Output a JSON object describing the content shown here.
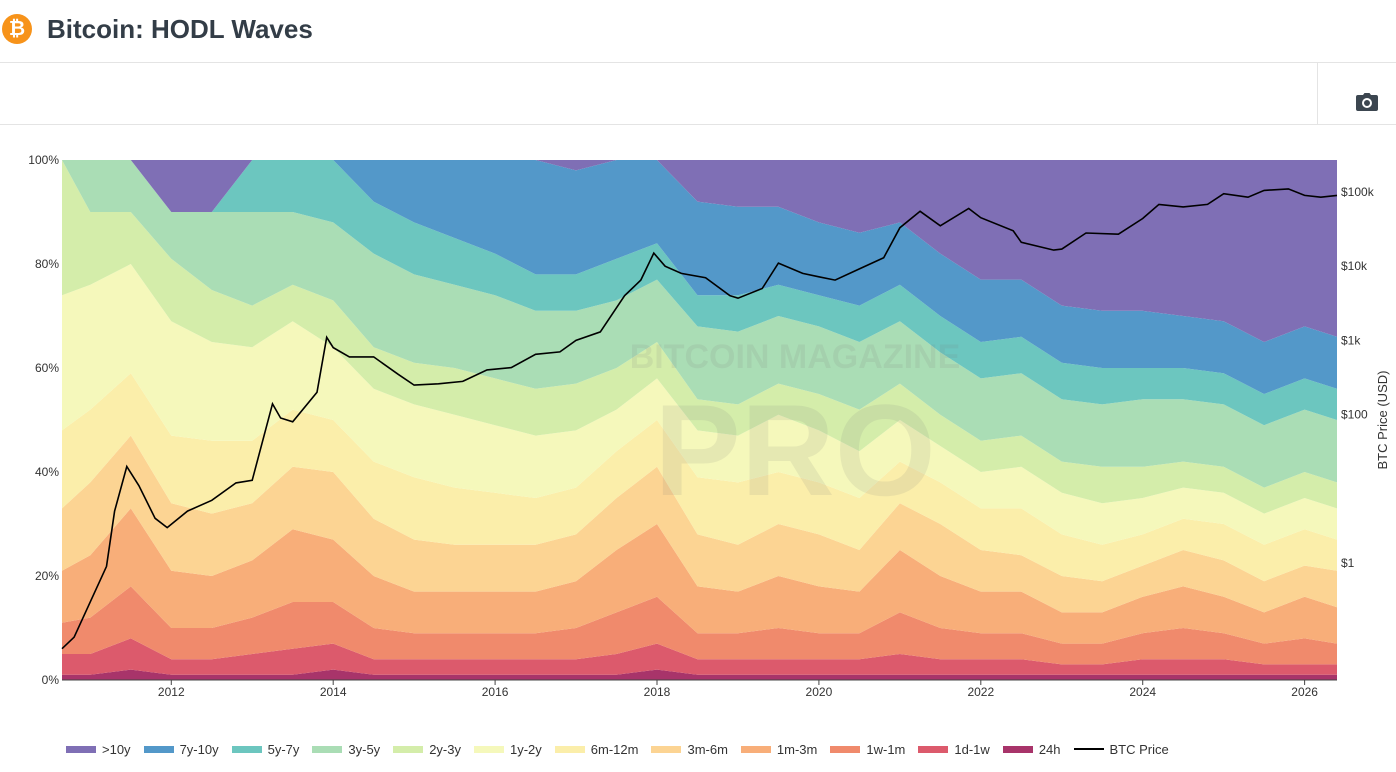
{
  "header": {
    "logo_glyph": "₿",
    "title": "Bitcoin: HODL Waves"
  },
  "toolbar": {
    "camera_icon": "camera-icon"
  },
  "watermark": {
    "line1": "BITCOIN MAGAZINE",
    "line2": "PRO"
  },
  "colors": {
    ">10y": "#7f6fb5",
    "7y-10y": "#5398c9",
    "5y-7y": "#6cc6bf",
    "3y-5y": "#aaddb5",
    "2y-3y": "#d4edaa",
    "1y-2y": "#f5f8bb",
    "6m-12m": "#fbeeaa",
    "3m-6m": "#fcd493",
    "1m-3m": "#f8ae79",
    "1w-1m": "#f08a6c",
    "1d-1w": "#dc5a6c",
    "24h": "#a8346a",
    "BTC Price": "#000000"
  },
  "chart_data": {
    "type": "area",
    "stacked": true,
    "xlabel": "",
    "ylabel_left": "",
    "ylabel_right": "BTC Price (USD)",
    "x_ticks": [
      "2012",
      "2014",
      "2016",
      "2018",
      "2020",
      "2022",
      "2024",
      "2026"
    ],
    "y_ticks": [
      "0%",
      "20%",
      "40%",
      "60%",
      "80%",
      "100%"
    ],
    "y2_ticks": [
      "$1",
      "$100",
      "$1k",
      "$10k",
      "$100k"
    ],
    "y2_tick_values": [
      1,
      100,
      1000,
      10000,
      100000
    ],
    "ylim": [
      0,
      100
    ],
    "y2_scale": "log",
    "legend_position": "bottom",
    "x": [
      2010.65,
      2011.0,
      2011.5,
      2012.0,
      2012.5,
      2013.0,
      2013.5,
      2014.0,
      2014.5,
      2015.0,
      2015.5,
      2016.0,
      2016.5,
      2017.0,
      2017.5,
      2018.0,
      2018.5,
      2019.0,
      2019.5,
      2020.0,
      2020.5,
      2021.0,
      2021.5,
      2022.0,
      2022.5,
      2023.0,
      2023.5,
      2024.0,
      2024.5,
      2025.0,
      2025.5,
      2026.0,
      2026.4
    ],
    "series": [
      {
        "name": "24h",
        "values": [
          1,
          1,
          2,
          1,
          1,
          1,
          1,
          2,
          1,
          1,
          1,
          1,
          1,
          1,
          1,
          2,
          1,
          1,
          1,
          1,
          1,
          1,
          1,
          1,
          1,
          1,
          1,
          1,
          1,
          1,
          1,
          1,
          1
        ]
      },
      {
        "name": "1d-1w",
        "values": [
          4,
          4,
          6,
          3,
          3,
          4,
          5,
          5,
          3,
          3,
          3,
          3,
          3,
          3,
          4,
          5,
          3,
          3,
          3,
          3,
          3,
          4,
          3,
          3,
          3,
          2,
          2,
          3,
          3,
          3,
          2,
          2,
          2
        ]
      },
      {
        "name": "1w-1m",
        "values": [
          6,
          7,
          10,
          6,
          6,
          7,
          9,
          8,
          6,
          5,
          5,
          5,
          5,
          6,
          8,
          9,
          5,
          5,
          6,
          5,
          5,
          8,
          6,
          5,
          5,
          4,
          4,
          5,
          6,
          5,
          4,
          5,
          4
        ]
      },
      {
        "name": "1m-3m",
        "values": [
          10,
          12,
          15,
          11,
          10,
          11,
          14,
          12,
          10,
          8,
          8,
          8,
          8,
          9,
          12,
          14,
          9,
          8,
          10,
          9,
          8,
          12,
          10,
          8,
          8,
          6,
          6,
          7,
          8,
          7,
          6,
          8,
          7
        ]
      },
      {
        "name": "3m-6m",
        "values": [
          12,
          14,
          14,
          13,
          12,
          11,
          12,
          13,
          11,
          10,
          9,
          9,
          9,
          9,
          10,
          11,
          10,
          9,
          10,
          10,
          8,
          9,
          10,
          8,
          7,
          7,
          6,
          6,
          7,
          7,
          6,
          6,
          7
        ]
      },
      {
        "name": "6m-12m",
        "values": [
          15,
          14,
          12,
          13,
          14,
          12,
          11,
          10,
          11,
          12,
          11,
          10,
          9,
          9,
          9,
          9,
          11,
          12,
          10,
          10,
          10,
          8,
          8,
          8,
          9,
          8,
          7,
          6,
          6,
          7,
          7,
          7,
          6
        ]
      },
      {
        "name": "1y-2y",
        "values": [
          26,
          24,
          21,
          22,
          19,
          18,
          17,
          14,
          14,
          14,
          14,
          13,
          12,
          11,
          8,
          8,
          9,
          9,
          11,
          10,
          9,
          8,
          7,
          7,
          8,
          8,
          8,
          7,
          6,
          6,
          6,
          6,
          6
        ]
      },
      {
        "name": "2y-3y",
        "values": [
          26,
          14,
          10,
          12,
          10,
          8,
          7,
          9,
          8,
          8,
          9,
          9,
          9,
          9,
          8,
          7,
          6,
          6,
          6,
          7,
          8,
          7,
          6,
          6,
          6,
          6,
          7,
          6,
          5,
          5,
          5,
          5,
          5
        ]
      },
      {
        "name": "3y-5y",
        "values": [
          0,
          10,
          10,
          9,
          15,
          18,
          14,
          15,
          18,
          17,
          16,
          16,
          15,
          14,
          13,
          12,
          14,
          14,
          13,
          13,
          13,
          12,
          12,
          12,
          12,
          12,
          12,
          13,
          12,
          12,
          12,
          12,
          12
        ]
      },
      {
        "name": "5y-7y",
        "values": [
          0,
          0,
          0,
          0,
          0,
          10,
          10,
          12,
          10,
          10,
          9,
          8,
          7,
          7,
          8,
          7,
          6,
          7,
          6,
          6,
          7,
          7,
          7,
          7,
          7,
          7,
          7,
          6,
          6,
          6,
          6,
          6,
          6
        ]
      },
      {
        "name": "7y-10y",
        "values": [
          0,
          0,
          0,
          0,
          0,
          0,
          0,
          0,
          8,
          12,
          15,
          18,
          22,
          20,
          19,
          16,
          18,
          17,
          15,
          14,
          14,
          12,
          12,
          12,
          11,
          11,
          11,
          11,
          10,
          10,
          10,
          10,
          10
        ]
      },
      {
        "name": ">10y",
        "values": [
          0,
          0,
          0,
          0,
          0,
          0,
          0,
          0,
          0,
          0,
          0,
          0,
          0,
          2,
          0,
          0,
          8,
          9,
          9,
          12,
          14,
          12,
          18,
          23,
          23,
          28,
          29,
          29,
          30,
          31,
          35,
          32,
          34
        ]
      }
    ],
    "price_series": {
      "name": "BTC Price",
      "x": [
        2010.65,
        2010.8,
        2011.0,
        2011.2,
        2011.3,
        2011.45,
        2011.6,
        2011.8,
        2011.95,
        2012.2,
        2012.5,
        2012.8,
        2013.0,
        2013.25,
        2013.35,
        2013.5,
        2013.8,
        2013.92,
        2014.0,
        2014.2,
        2014.5,
        2014.8,
        2015.0,
        2015.3,
        2015.6,
        2015.9,
        2016.2,
        2016.5,
        2016.8,
        2017.0,
        2017.3,
        2017.6,
        2017.8,
        2017.96,
        2018.1,
        2018.3,
        2018.6,
        2018.9,
        2019.0,
        2019.3,
        2019.5,
        2019.8,
        2020.0,
        2020.2,
        2020.5,
        2020.8,
        2021.0,
        2021.25,
        2021.5,
        2021.85,
        2022.0,
        2022.4,
        2022.5,
        2022.9,
        2023.0,
        2023.3,
        2023.7,
        2024.0,
        2024.2,
        2024.5,
        2024.8,
        2025.0,
        2025.3,
        2025.5,
        2025.8,
        2026.0,
        2026.2,
        2026.4
      ],
      "values": [
        0.07,
        0.1,
        0.3,
        0.9,
        5,
        20,
        11,
        4,
        3,
        5,
        7,
        12,
        13,
        140,
        90,
        80,
        200,
        1100,
        800,
        600,
        600,
        350,
        250,
        260,
        280,
        400,
        430,
        650,
        700,
        1000,
        1300,
        4000,
        6500,
        15000,
        10000,
        8000,
        7000,
        4000,
        3700,
        5000,
        11000,
        8000,
        7200,
        6500,
        9200,
        13000,
        33000,
        55000,
        35000,
        60000,
        45000,
        30000,
        21000,
        16500,
        17000,
        28000,
        27000,
        44000,
        68000,
        63000,
        68000,
        95000,
        85000,
        105000,
        110000,
        90000,
        85000,
        90000
      ]
    }
  }
}
